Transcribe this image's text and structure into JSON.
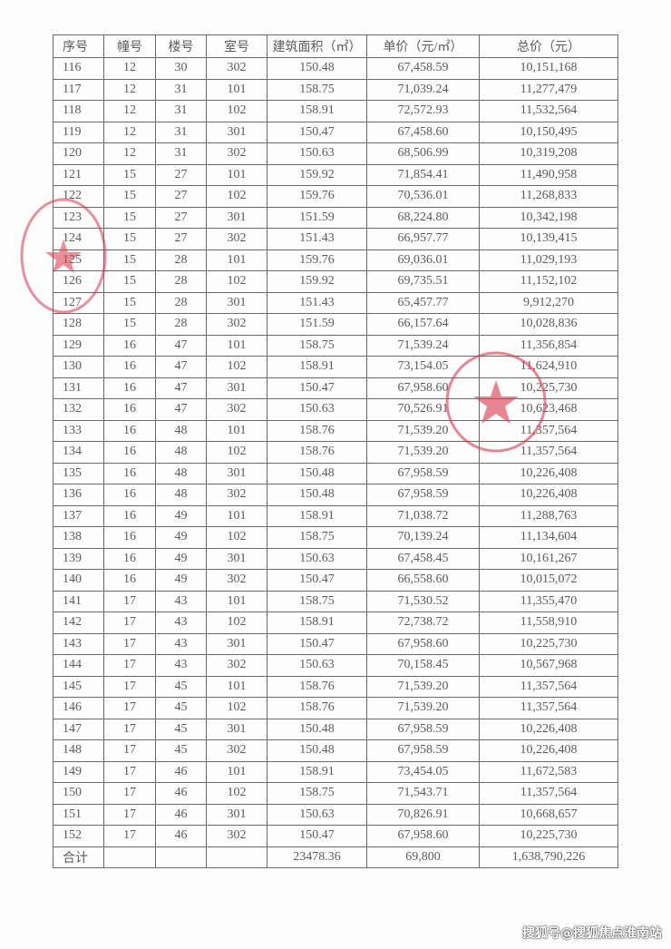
{
  "table": {
    "headers": [
      "序号",
      "幢号",
      "楼号",
      "室号",
      "建筑面积（㎡）",
      "单价（元/㎡）",
      "总价（元）"
    ],
    "rows": [
      [
        "116",
        "12",
        "30",
        "302",
        "150.48",
        "67,458.59",
        "10,151,168"
      ],
      [
        "117",
        "12",
        "31",
        "101",
        "158.75",
        "71,039.24",
        "11,277,479"
      ],
      [
        "118",
        "12",
        "31",
        "102",
        "158.91",
        "72,572.93",
        "11,532,564"
      ],
      [
        "119",
        "12",
        "31",
        "301",
        "150.47",
        "67,458.60",
        "10,150,495"
      ],
      [
        "120",
        "12",
        "31",
        "302",
        "150.63",
        "68,506.99",
        "10,319,208"
      ],
      [
        "121",
        "15",
        "27",
        "101",
        "159.92",
        "71,854.41",
        "11,490,958"
      ],
      [
        "122",
        "15",
        "27",
        "102",
        "159.76",
        "70,536.01",
        "11,268,833"
      ],
      [
        "123",
        "15",
        "27",
        "301",
        "151.59",
        "68,224.80",
        "10,342,198"
      ],
      [
        "124",
        "15",
        "27",
        "302",
        "151.43",
        "66,957.77",
        "10,139,415"
      ],
      [
        "125",
        "15",
        "28",
        "101",
        "159.76",
        "69,036.01",
        "11,029,193"
      ],
      [
        "126",
        "15",
        "28",
        "102",
        "159.92",
        "69,735.51",
        "11,152,102"
      ],
      [
        "127",
        "15",
        "28",
        "301",
        "151.43",
        "65,457.77",
        "9,912,270"
      ],
      [
        "128",
        "15",
        "28",
        "302",
        "151.59",
        "66,157.64",
        "10,028,836"
      ],
      [
        "129",
        "16",
        "47",
        "101",
        "158.75",
        "71,539.24",
        "11,356,854"
      ],
      [
        "130",
        "16",
        "47",
        "102",
        "158.91",
        "73,154.05",
        "11,624,910"
      ],
      [
        "131",
        "16",
        "47",
        "301",
        "150.47",
        "67,958.60",
        "10,225,730"
      ],
      [
        "132",
        "16",
        "47",
        "302",
        "150.63",
        "70,526.91",
        "10,623,468"
      ],
      [
        "133",
        "16",
        "48",
        "101",
        "158.76",
        "71,539.20",
        "11,357,564"
      ],
      [
        "134",
        "16",
        "48",
        "102",
        "158.76",
        "71,539.20",
        "11,357,564"
      ],
      [
        "135",
        "16",
        "48",
        "301",
        "150.48",
        "67,958.59",
        "10,226,408"
      ],
      [
        "136",
        "16",
        "48",
        "302",
        "150.48",
        "67,958.59",
        "10,226,408"
      ],
      [
        "137",
        "16",
        "49",
        "101",
        "158.91",
        "71,038.72",
        "11,288,763"
      ],
      [
        "138",
        "16",
        "49",
        "102",
        "158.75",
        "70,139.24",
        "11,134,604"
      ],
      [
        "139",
        "16",
        "49",
        "301",
        "150.63",
        "67,458.45",
        "10,161,267"
      ],
      [
        "140",
        "16",
        "49",
        "302",
        "150.47",
        "66,558.60",
        "10,015,072"
      ],
      [
        "141",
        "17",
        "43",
        "101",
        "158.75",
        "71,530.52",
        "11,355,470"
      ],
      [
        "142",
        "17",
        "43",
        "102",
        "158.91",
        "72,738.72",
        "11,558,910"
      ],
      [
        "143",
        "17",
        "43",
        "301",
        "150.47",
        "67,958.60",
        "10,225,730"
      ],
      [
        "144",
        "17",
        "43",
        "302",
        "150.63",
        "70,158.45",
        "10,567,968"
      ],
      [
        "145",
        "17",
        "45",
        "101",
        "158.76",
        "71,539.20",
        "11,357,564"
      ],
      [
        "146",
        "17",
        "45",
        "102",
        "158.76",
        "71,539.20",
        "11,357,564"
      ],
      [
        "147",
        "17",
        "45",
        "301",
        "150.48",
        "67,958.59",
        "10,226,408"
      ],
      [
        "148",
        "17",
        "45",
        "302",
        "150.48",
        "67,958.59",
        "10,226,408"
      ],
      [
        "149",
        "17",
        "46",
        "101",
        "158.91",
        "73,454.05",
        "11,672,583"
      ],
      [
        "150",
        "17",
        "46",
        "102",
        "158.75",
        "71,543.71",
        "11,357,564"
      ],
      [
        "151",
        "17",
        "46",
        "301",
        "150.63",
        "70,826.91",
        "10,668,657"
      ],
      [
        "152",
        "17",
        "46",
        "302",
        "150.47",
        "67,958.60",
        "10,225,730"
      ]
    ],
    "total": [
      "合计",
      "",
      "",
      "",
      "23478.36",
      "69,800",
      "1,638,790,226"
    ]
  },
  "stamp_color": "#d9364a",
  "watermark": "搜狐号@搜狐焦点淮南站"
}
